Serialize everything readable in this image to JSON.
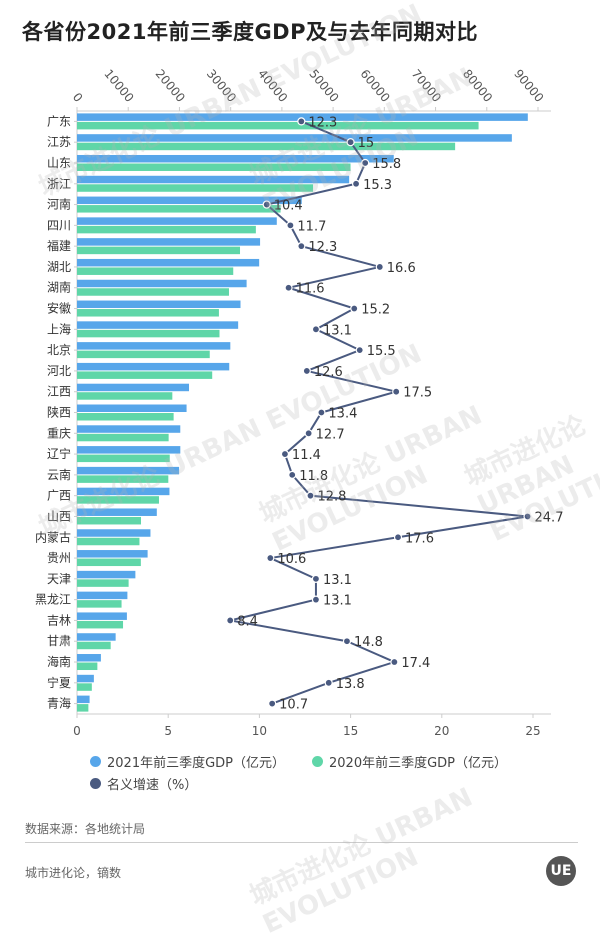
{
  "title": "各省份2021年前三季度GDP及与去年同期对比",
  "chart_data": {
    "type": "bar",
    "orientation": "horizontal",
    "categories": [
      "广东",
      "江苏",
      "山东",
      "浙江",
      "河南",
      "四川",
      "福建",
      "湖北",
      "湖南",
      "安徽",
      "上海",
      "北京",
      "河北",
      "江西",
      "陕西",
      "重庆",
      "辽宁",
      "云南",
      "广西",
      "山西",
      "内蒙古",
      "贵州",
      "天津",
      "黑龙江",
      "吉林",
      "甘肃",
      "海南",
      "宁夏",
      "青海"
    ],
    "series": [
      {
        "name": "2021年前三季度GDP（亿元）",
        "type": "bar",
        "axis": "top",
        "color": "#57a6ea",
        "values": [
          88010,
          84896,
          61837,
          53133,
          43879,
          39004,
          35741,
          35565,
          33112,
          31919,
          31462,
          29932,
          29722,
          21867,
          21392,
          20162,
          20170,
          19931,
          18052,
          15581,
          14340,
          13786,
          11397,
          9838,
          9744,
          7545,
          4667,
          3294,
          2457
        ]
      },
      {
        "name": "2020年前三季度GDP（亿元）",
        "type": "bar",
        "axis": "top",
        "color": "#5fd6a8",
        "values": [
          78397,
          73822,
          53400,
          46083,
          39745,
          34919,
          31826,
          30502,
          29670,
          27708,
          27818,
          25915,
          26396,
          18610,
          18864,
          17890,
          18106,
          17827,
          16004,
          12495,
          12194,
          12465,
          10077,
          8699,
          8989,
          6572,
          3975,
          2895,
          2220
        ]
      },
      {
        "name": "名义增速（%）",
        "type": "line",
        "axis": "bottom",
        "color": "#4a5a80",
        "values": [
          12.3,
          15,
          15.8,
          15.3,
          10.4,
          11.7,
          12.3,
          16.6,
          11.6,
          15.2,
          13.1,
          15.5,
          12.6,
          17.5,
          13.4,
          12.7,
          11.4,
          11.8,
          12.8,
          24.7,
          17.6,
          10.6,
          13.1,
          13.1,
          8.4,
          14.8,
          17.4,
          13.8,
          10.7
        ]
      }
    ],
    "top_axis": {
      "range": [
        0,
        90000
      ],
      "ticks": [
        "0",
        "10000",
        "20000",
        "30000",
        "40000",
        "50000",
        "60000",
        "70000",
        "80000",
        "90000"
      ]
    },
    "bottom_axis": {
      "range": [
        0,
        25
      ],
      "ticks": [
        "0",
        "5",
        "10",
        "15",
        "20",
        "25"
      ]
    },
    "grid": false,
    "legend_position": "bottom"
  },
  "legend": {
    "gdp2021": "2021年前三季度GDP（亿元）",
    "gdp2020": "2020年前三季度GDP（亿元）",
    "growth": "名义增速（%）"
  },
  "source": "数据来源：各地统计局",
  "credit": "城市进化论，镝数",
  "logo": "UE",
  "watermark": "城市进化论 URBAN EVOLUTION"
}
